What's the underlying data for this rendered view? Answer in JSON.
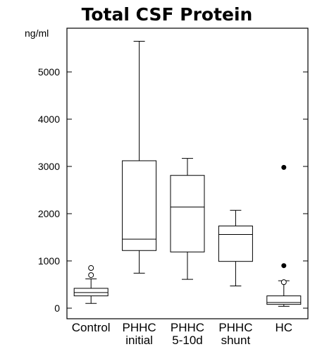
{
  "chart_data": {
    "type": "box",
    "title": "Total CSF Protein",
    "ylabel": "ng/ml",
    "xlabel": "",
    "ylim": [
      -120,
      6100
    ],
    "yticks": [
      0,
      1000,
      2000,
      3000,
      4000,
      5000
    ],
    "grid": false,
    "categories": [
      {
        "lines": [
          "Control"
        ]
      },
      {
        "lines": [
          "PHHC",
          "initial"
        ]
      },
      {
        "lines": [
          "PHHC",
          "5-10d"
        ]
      },
      {
        "lines": [
          "PHHC",
          "shunt"
        ]
      },
      {
        "lines": [
          "HC"
        ]
      }
    ],
    "boxes": [
      {
        "whisker_low": 100,
        "q1": 260,
        "median": 330,
        "q3": 420,
        "whisker_high": 620,
        "outliers": [
          {
            "value": 700,
            "style": "open"
          },
          {
            "value": 850,
            "style": "open"
          }
        ]
      },
      {
        "whisker_low": 740,
        "q1": 1220,
        "median": 1460,
        "q3": 3120,
        "whisker_high": 5650,
        "outliers": []
      },
      {
        "whisker_low": 610,
        "q1": 1190,
        "median": 2140,
        "q3": 2810,
        "whisker_high": 3170,
        "outliers": []
      },
      {
        "whisker_low": 470,
        "q1": 990,
        "median": 1560,
        "q3": 1740,
        "whisker_high": 2070,
        "outliers": []
      },
      {
        "whisker_low": 40,
        "q1": 80,
        "median": 120,
        "q3": 260,
        "whisker_high": 580,
        "outliers": [
          {
            "value": 550,
            "style": "open"
          },
          {
            "value": 900,
            "style": "filled"
          },
          {
            "value": 2980,
            "style": "filled"
          }
        ]
      }
    ]
  }
}
